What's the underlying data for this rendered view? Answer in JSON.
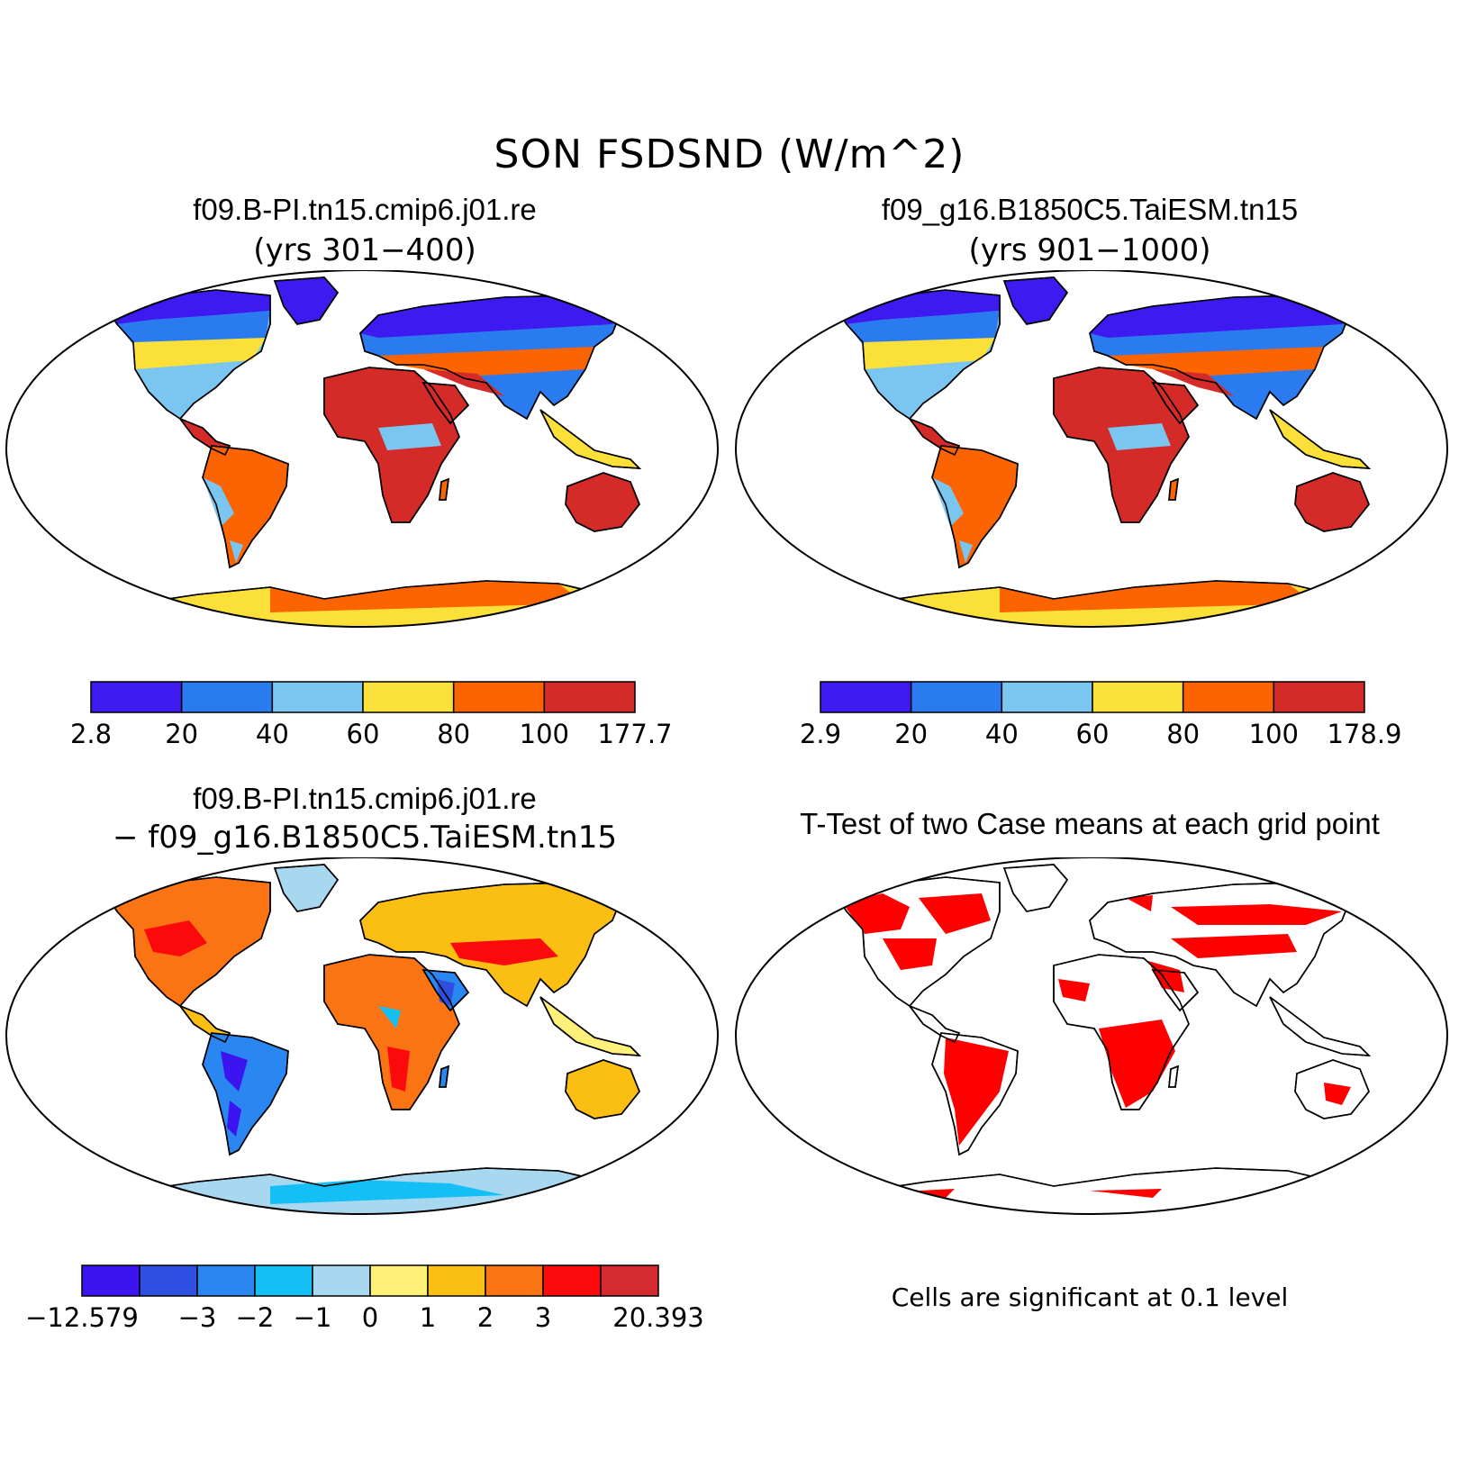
{
  "figure": {
    "title": "SON FSDSND (W/m^2)"
  },
  "panels": {
    "case1": {
      "title": "f09.B-PI.tn15.cmip6.j01.re",
      "subtitle": "(yrs 301−400)",
      "colorbar": {
        "colors": [
          "#3c1af0",
          "#2a7af0",
          "#7ac6f0",
          "#fce03a",
          "#fb6400",
          "#d42a28"
        ],
        "labels": [
          "2.8",
          "20",
          "40",
          "60",
          "80",
          "100",
          "177.7"
        ]
      }
    },
    "case2": {
      "title": "f09_g16.B1850C5.TaiESM.tn15",
      "subtitle": "(yrs 901−1000)",
      "colorbar": {
        "colors": [
          "#3c1af0",
          "#2a7af0",
          "#7ac6f0",
          "#fce03a",
          "#fb6400",
          "#d42a28"
        ],
        "labels": [
          "2.9",
          "20",
          "40",
          "60",
          "80",
          "100",
          "178.9"
        ]
      }
    },
    "diff": {
      "title": "f09.B-PI.tn15.cmip6.j01.re",
      "subtitle": "− f09_g16.B1850C5.TaiESM.tn15",
      "colorbar": {
        "colors": [
          "#3c14f0",
          "#2f4fe0",
          "#2a86f0",
          "#14bff5",
          "#a8d8f0",
          "#fff07a",
          "#fbbf14",
          "#fb7414",
          "#fa0a0a",
          "#d42a30"
        ],
        "labels": [
          "−12.579",
          "−3",
          "−2",
          "−1",
          "0",
          "1",
          "2",
          "3",
          "20.393"
        ]
      }
    },
    "ttest": {
      "title": "T-Test of two Case means at each grid point",
      "note": "Cells are significant at 0.1 level",
      "sig_color": "#ff0000"
    }
  }
}
